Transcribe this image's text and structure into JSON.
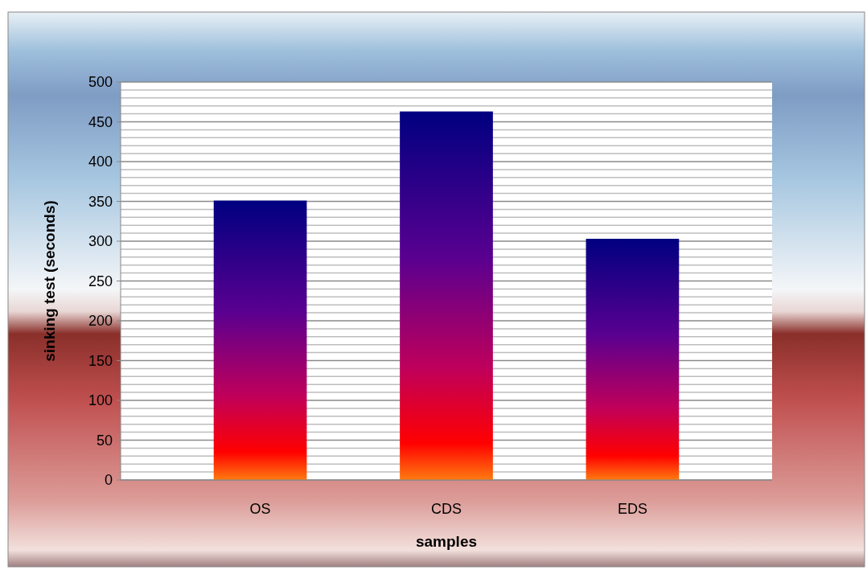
{
  "chart_data": {
    "type": "bar",
    "categories": [
      "OS",
      "CDS",
      "EDS"
    ],
    "values": [
      351,
      463,
      303
    ],
    "color": "#5a0090",
    "xlabel": "samples",
    "ylabel": "sinking test (seconds)",
    "ylim": [
      0,
      500
    ],
    "yticks": [
      0,
      50,
      100,
      150,
      200,
      250,
      300,
      350,
      400,
      450,
      500
    ],
    "grid": "y"
  }
}
